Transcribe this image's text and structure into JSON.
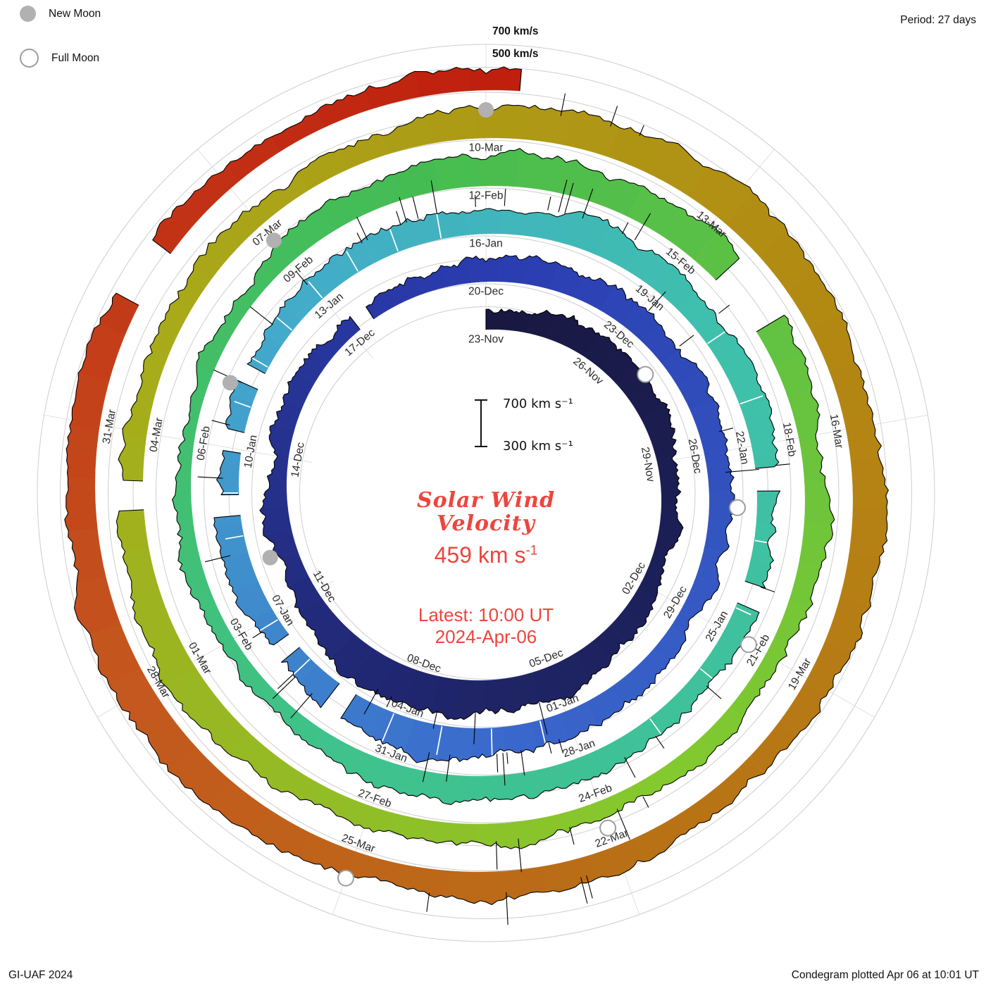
{
  "legend": {
    "new_moon": "New Moon",
    "full_moon": "Full Moon"
  },
  "top_right": {
    "period": "Period: 27 days"
  },
  "top_axis": {
    "line_700": "700 km/s",
    "line_500": "500 km/s"
  },
  "center": {
    "scale_top": "700 km s⁻¹",
    "scale_bottom": "300 km s⁻¹",
    "title1": "Solar Wind",
    "title2": "Velocity",
    "value": "459 km s",
    "value_sup": "-1",
    "latest": "Latest: 10:00 UT",
    "date": "2024-Apr-06"
  },
  "footer": {
    "left": "GI-UAF 2024",
    "right": "Condegram plotted Apr 06 at 10:01 UT"
  },
  "colors": {
    "accent_red": "#ee453e",
    "grid": "#cdcdcd",
    "label": "#2a2a2a",
    "moon_gray": "#b1b1b1"
  },
  "chart_data": {
    "type": "line",
    "layout": "spiral-condegram",
    "title": "Solar Wind Velocity",
    "ylabel": "Solar wind speed (km/s)",
    "period_days": 27,
    "start_date_label": "23-Nov",
    "latest_value_km_s": 459,
    "latest_time": "10:00 UT 2024-Apr-06",
    "radial_scale_km_s": {
      "baseline": 300,
      "gridlines": [
        500,
        700
      ],
      "reference_bar": [
        300,
        700
      ]
    },
    "sample_step_days": 3,
    "velocity_km_s": [
      480,
      530,
      470,
      440,
      580,
      620,
      540,
      470,
      440,
      500,
      560,
      480,
      440,
      520,
      580,
      490,
      450,
      500,
      560,
      590,
      500,
      450,
      490,
      540,
      460,
      430,
      480,
      560,
      600,
      510,
      460,
      440,
      510,
      570,
      480,
      450,
      540,
      620,
      580,
      500,
      470,
      550,
      600,
      560,
      490,
      459
    ],
    "date_labels": [
      {
        "day": 0,
        "label": "23-Nov"
      },
      {
        "day": 3,
        "label": "26-Nov"
      },
      {
        "day": 6,
        "label": "29-Nov"
      },
      {
        "day": 9,
        "label": "02-Dec"
      },
      {
        "day": 12,
        "label": "05-Dec"
      },
      {
        "day": 15,
        "label": "08-Dec"
      },
      {
        "day": 18,
        "label": "11-Dec"
      },
      {
        "day": 21,
        "label": "14-Dec"
      },
      {
        "day": 24,
        "label": "17-Dec"
      },
      {
        "day": 27,
        "label": "20-Dec"
      },
      {
        "day": 30,
        "label": "23-Dec"
      },
      {
        "day": 33,
        "label": "26-Dec"
      },
      {
        "day": 36,
        "label": "29-Dec"
      },
      {
        "day": 39,
        "label": "01-Jan"
      },
      {
        "day": 42,
        "label": "04-Jan"
      },
      {
        "day": 45,
        "label": "07-Jan"
      },
      {
        "day": 48,
        "label": "10-Jan"
      },
      {
        "day": 51,
        "label": "13-Jan"
      },
      {
        "day": 54,
        "label": "16-Jan"
      },
      {
        "day": 57,
        "label": "19-Jan"
      },
      {
        "day": 60,
        "label": "22-Jan"
      },
      {
        "day": 63,
        "label": "25-Jan"
      },
      {
        "day": 66,
        "label": "28-Jan"
      },
      {
        "day": 69,
        "label": "31-Jan"
      },
      {
        "day": 72,
        "label": "03-Feb"
      },
      {
        "day": 75,
        "label": "06-Feb"
      },
      {
        "day": 78,
        "label": "09-Feb"
      },
      {
        "day": 81,
        "label": "12-Feb"
      },
      {
        "day": 84,
        "label": "15-Feb"
      },
      {
        "day": 87,
        "label": "18-Feb"
      },
      {
        "day": 90,
        "label": "21-Feb"
      },
      {
        "day": 93,
        "label": "24-Feb"
      },
      {
        "day": 96,
        "label": "27-Feb"
      },
      {
        "day": 99,
        "label": "01-Mar"
      },
      {
        "day": 102,
        "label": "04-Mar"
      },
      {
        "day": 105,
        "label": "07-Mar"
      },
      {
        "day": 108,
        "label": "10-Mar"
      },
      {
        "day": 111,
        "label": "13-Mar"
      },
      {
        "day": 114,
        "label": "16-Mar"
      },
      {
        "day": 117,
        "label": "19-Mar"
      },
      {
        "day": 120,
        "label": "22-Mar"
      },
      {
        "day": 123,
        "label": "25-Mar"
      },
      {
        "day": 126,
        "label": "28-Mar"
      },
      {
        "day": 129,
        "label": "31-Mar"
      }
    ],
    "moon_events": [
      {
        "day": 4,
        "type": "full",
        "date": "27-Nov"
      },
      {
        "day": 19,
        "type": "new",
        "date": "12-Dec"
      },
      {
        "day": 34,
        "type": "full",
        "date": "27-Dec"
      },
      {
        "day": 49,
        "type": "new",
        "date": "11-Jan"
      },
      {
        "day": 63,
        "type": "full",
        "date": "25-Jan"
      },
      {
        "day": 78,
        "type": "new",
        "date": "09-Feb"
      },
      {
        "day": 93,
        "type": "full",
        "date": "24-Feb"
      },
      {
        "day": 108,
        "type": "new",
        "date": "10-Mar"
      },
      {
        "day": 123,
        "type": "full",
        "date": "25-Mar"
      }
    ],
    "color_stops": [
      {
        "day": 0,
        "color": "#181840"
      },
      {
        "day": 14,
        "color": "#1f2568"
      },
      {
        "day": 27,
        "color": "#2a3cb0"
      },
      {
        "day": 40,
        "color": "#3a67cc"
      },
      {
        "day": 50,
        "color": "#43aacc"
      },
      {
        "day": 58,
        "color": "#3fc0ad"
      },
      {
        "day": 70,
        "color": "#3fc28a"
      },
      {
        "day": 80,
        "color": "#45bc52"
      },
      {
        "day": 92,
        "color": "#83c92e"
      },
      {
        "day": 103,
        "color": "#a8ab1a"
      },
      {
        "day": 112,
        "color": "#b28c12"
      },
      {
        "day": 120,
        "color": "#b96f16"
      },
      {
        "day": 126,
        "color": "#c4581e"
      },
      {
        "day": 131,
        "color": "#c23517"
      },
      {
        "day": 136,
        "color": "#bf1a0c"
      }
    ],
    "data_gaps_days": [
      [
        24.2,
        24.5
      ],
      [
        43.0,
        43.3
      ],
      [
        44.3,
        44.55
      ],
      [
        46.9,
        47.2
      ],
      [
        48.0,
        48.25
      ],
      [
        49.1,
        49.35
      ],
      [
        60.4,
        60.7
      ],
      [
        62.2,
        62.5
      ],
      [
        84.6,
        85.4
      ],
      [
        101.1,
        101.4
      ],
      [
        130.4,
        131.0
      ]
    ],
    "white_separator_ranges": [
      [
        39.5,
        45.5,
        0.9
      ],
      [
        46.5,
        53.5,
        0.75
      ],
      [
        58.2,
        65.8,
        1.1
      ]
    ],
    "spike_ranges": [
      [
        12,
        16,
        5
      ],
      [
        30,
        34,
        4
      ],
      [
        39,
        45,
        12
      ],
      [
        46,
        54,
        14
      ],
      [
        54,
        58,
        8
      ],
      [
        60,
        66,
        6
      ],
      [
        92,
        95,
        5
      ],
      [
        108,
        111,
        3
      ],
      [
        120,
        123,
        4
      ]
    ]
  }
}
